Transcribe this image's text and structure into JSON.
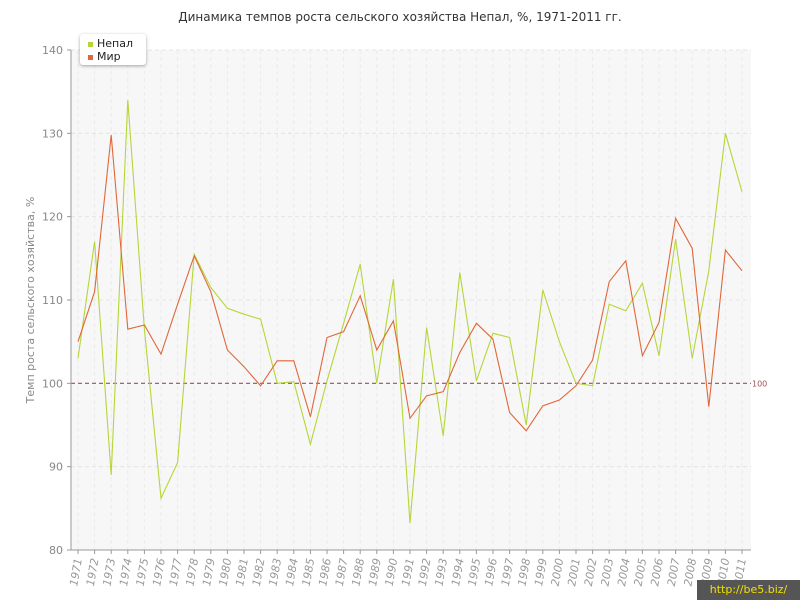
{
  "chart_data": {
    "type": "line",
    "title": "Динамика темпов роста сельского хозяйства Непал, %, 1971-2011 гг.",
    "xlabel": "",
    "ylabel": "Темп роста сельского хозяйства, %",
    "ylim": [
      80,
      140
    ],
    "yticks": [
      "80",
      "90",
      "100",
      "110",
      "120",
      "130",
      "140"
    ],
    "grid": true,
    "legend_position": "top-left",
    "reference_line": {
      "value": 100,
      "label": "100",
      "color": "#a0505a"
    },
    "x": [
      "1971",
      "1972",
      "1973",
      "1974",
      "1975",
      "1976",
      "1977",
      "1978",
      "1979",
      "1980",
      "1981",
      "1982",
      "1983",
      "1984",
      "1985",
      "1986",
      "1987",
      "1988",
      "1989",
      "1990",
      "1991",
      "1992",
      "1993",
      "1994",
      "1995",
      "1996",
      "1997",
      "1998",
      "1999",
      "2000",
      "2001",
      "2002",
      "2003",
      "2004",
      "2005",
      "2006",
      "2007",
      "2008",
      "2009",
      "2010",
      "2011"
    ],
    "series": [
      {
        "name": "Непал",
        "color": "#b5d63a",
        "values": [
          103.0,
          117.0,
          89.0,
          134.0,
          106.5,
          86.2,
          90.5,
          115.5,
          111.5,
          109.0,
          108.3,
          107.7,
          100.0,
          100.2,
          92.7,
          100.3,
          107.2,
          114.3,
          100.0,
          112.5,
          83.2,
          106.7,
          93.7,
          113.3,
          100.3,
          106.0,
          105.5,
          95.0,
          111.2,
          105.0,
          100.0,
          99.7,
          109.5,
          108.7,
          112.0,
          103.3,
          117.3,
          103.0,
          113.5,
          130.0,
          123.0
        ]
      },
      {
        "name": "Мир",
        "color": "#e0673a",
        "values": [
          105.0,
          111.0,
          129.8,
          106.5,
          107.0,
          103.5,
          109.5,
          115.3,
          111.0,
          104.0,
          102.0,
          99.7,
          102.7,
          102.7,
          96.0,
          105.5,
          106.2,
          110.5,
          104.0,
          107.5,
          95.8,
          98.5,
          99.0,
          103.7,
          107.2,
          105.3,
          96.5,
          94.3,
          97.3,
          98.0,
          99.7,
          102.8,
          112.2,
          114.7,
          103.3,
          107.3,
          119.8,
          116.2,
          97.2,
          116.0,
          113.5
        ]
      }
    ]
  },
  "watermark": "http://be5.biz/"
}
